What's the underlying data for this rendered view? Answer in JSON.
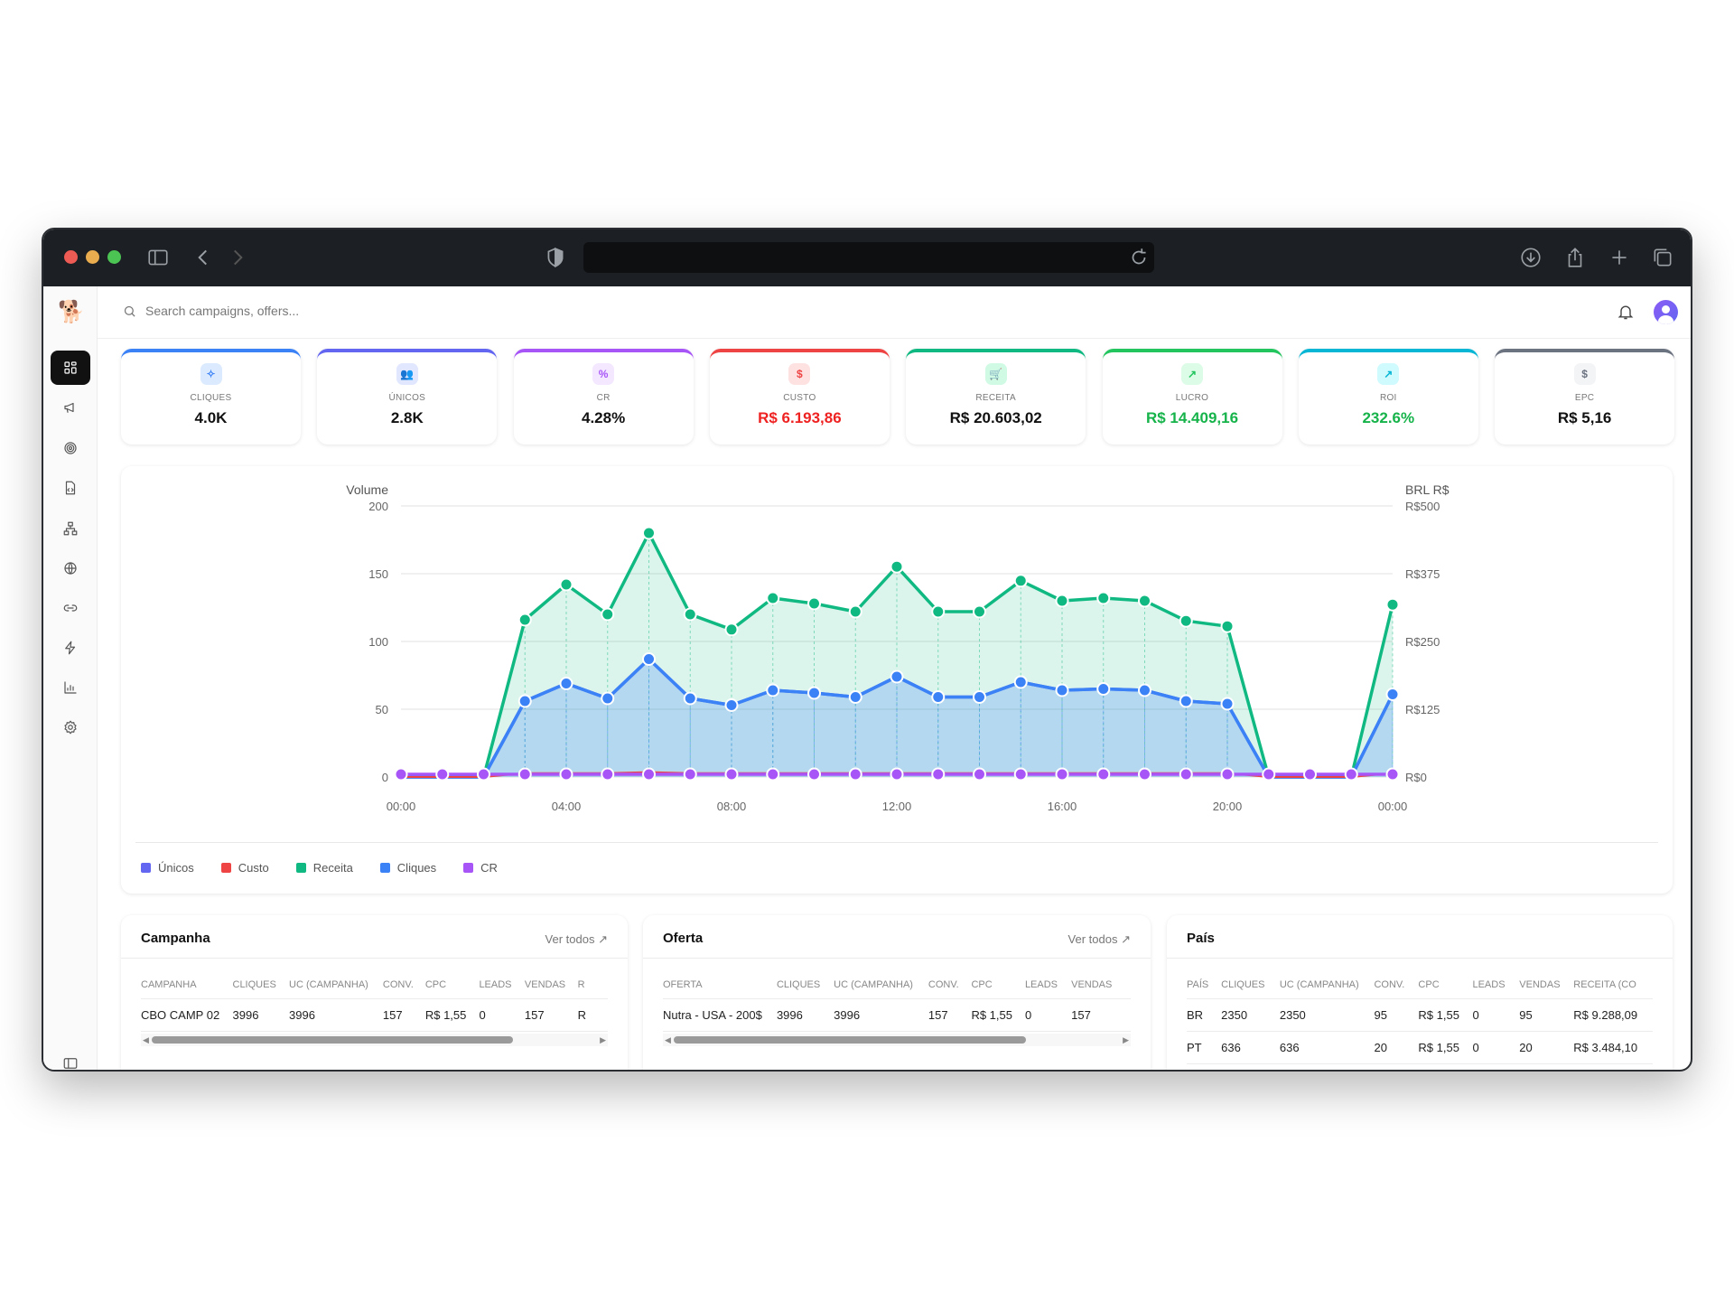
{
  "browser": {
    "icons": [
      "sidebar-toggle-icon",
      "back-icon",
      "forward-icon",
      "shield-icon",
      "reload-icon",
      "download-icon",
      "share-icon",
      "new-tab-icon",
      "tabs-overview-icon"
    ]
  },
  "header": {
    "search_placeholder": "Search campaigns, offers..."
  },
  "sidebar": {
    "items": [
      {
        "icon": "dashboard-icon",
        "active": true
      },
      {
        "icon": "megaphone-icon"
      },
      {
        "icon": "target-icon"
      },
      {
        "icon": "file-code-icon"
      },
      {
        "icon": "network-icon"
      },
      {
        "icon": "globe-icon"
      },
      {
        "icon": "link-icon"
      },
      {
        "icon": "zap-icon"
      },
      {
        "icon": "bar-chart-icon"
      },
      {
        "icon": "settings-icon"
      }
    ]
  },
  "kpis": [
    {
      "label": "CLIQUES",
      "value": "4.0K",
      "color": "#3b82f6",
      "icon": "✧",
      "icon_bg": "#dbeafe",
      "value_color": "#111111"
    },
    {
      "label": "ÚNICOS",
      "value": "2.8K",
      "color": "#6366f1",
      "icon": "👥",
      "icon_bg": "#e0e7ff",
      "value_color": "#111111"
    },
    {
      "label": "CR",
      "value": "4.28%",
      "color": "#a855f7",
      "icon": "%",
      "icon_bg": "#f3e8ff",
      "value_color": "#111111"
    },
    {
      "label": "CUSTO",
      "value": "R$ 6.193,86",
      "color": "#ef4444",
      "icon": "$",
      "icon_bg": "#fee2e2",
      "value_color": "#ef2222"
    },
    {
      "label": "RECEITA",
      "value": "R$ 20.603,02",
      "color": "#10b981",
      "icon": "🛒",
      "icon_bg": "#d1fae5",
      "value_color": "#111111"
    },
    {
      "label": "LUCRO",
      "value": "R$ 14.409,16",
      "color": "#22c55e",
      "icon": "↗",
      "icon_bg": "#dcfce7",
      "value_color": "#16b34a"
    },
    {
      "label": "ROI",
      "value": "232.6%",
      "color": "#06b6d4",
      "icon": "↗",
      "icon_bg": "#cffafe",
      "value_color": "#16b34a"
    },
    {
      "label": "EPC",
      "value": "R$ 5,16",
      "color": "#6b7280",
      "icon": "$",
      "icon_bg": "#f3f4f6",
      "value_color": "#111111"
    }
  ],
  "chart_data": {
    "type": "line",
    "x": [
      "00:00",
      "01:00",
      "02:00",
      "03:00",
      "04:00",
      "05:00",
      "06:00",
      "07:00",
      "08:00",
      "09:00",
      "10:00",
      "11:00",
      "12:00",
      "13:00",
      "14:00",
      "15:00",
      "16:00",
      "17:00",
      "18:00",
      "19:00",
      "20:00",
      "21:00",
      "22:00",
      "23:00",
      "00:00"
    ],
    "x_tick_labels": [
      "00:00",
      "04:00",
      "08:00",
      "12:00",
      "16:00",
      "20:00",
      "00:00"
    ],
    "ylabel": "Volume",
    "ylim": [
      0,
      200
    ],
    "yticks": [
      "0",
      "50",
      "100",
      "150",
      "200"
    ],
    "y2label": "BRL R$",
    "y2lim": [
      0,
      500
    ],
    "y2ticks": [
      "R$0",
      "R$125",
      "R$250",
      "R$375",
      "R$500"
    ],
    "grid": true,
    "legend_position": "bottom-left",
    "series": [
      {
        "name": "Únicos",
        "axis": "left",
        "color": "#6366f1",
        "values": [
          0,
          0,
          0,
          56,
          69,
          58,
          87,
          58,
          53,
          64,
          62,
          59,
          74,
          59,
          59,
          70,
          64,
          65,
          64,
          56,
          54,
          0,
          0,
          0,
          61
        ]
      },
      {
        "name": "Custo",
        "axis": "right",
        "color": "#ef4444",
        "values": [
          0,
          0,
          0,
          7,
          7,
          7,
          9,
          7,
          7,
          7,
          7,
          7,
          7,
          7,
          7,
          7,
          7,
          7,
          7,
          7,
          7,
          0,
          0,
          0,
          7
        ]
      },
      {
        "name": "Receita",
        "axis": "right",
        "color": "#10b981",
        "values": [
          0,
          0,
          0,
          290,
          355,
          300,
          450,
          300,
          272,
          330,
          320,
          305,
          388,
          305,
          305,
          362,
          325,
          330,
          325,
          288,
          278,
          0,
          0,
          0,
          318
        ]
      },
      {
        "name": "Cliques",
        "axis": "left",
        "color": "#3b82f6",
        "values": [
          0,
          0,
          0,
          56,
          69,
          58,
          87,
          58,
          53,
          64,
          62,
          59,
          74,
          59,
          59,
          70,
          64,
          65,
          64,
          56,
          54,
          0,
          0,
          0,
          61
        ]
      },
      {
        "name": "CR",
        "axis": "left",
        "color": "#a855f7",
        "values": [
          2,
          2,
          2,
          2,
          2,
          2,
          2,
          2,
          2,
          2,
          2,
          2,
          2,
          2,
          2,
          2,
          2,
          2,
          2,
          2,
          2,
          2,
          2,
          2,
          2
        ]
      }
    ]
  },
  "tables": [
    {
      "title": "Campanha",
      "more": "Ver todos",
      "columns": [
        "CAMPANHA",
        "CLIQUES",
        "UC (CAMPANHA)",
        "CONV.",
        "CPC",
        "LEADS",
        "VENDAS",
        "R"
      ],
      "rows": [
        [
          "CBO CAMP 02",
          "3996",
          "3996",
          "157",
          "R$ 1,55",
          "0",
          "157",
          "R"
        ]
      ]
    },
    {
      "title": "Oferta",
      "more": "Ver todos",
      "columns": [
        "OFERTA",
        "CLIQUES",
        "UC (CAMPANHA)",
        "CONV.",
        "CPC",
        "LEADS",
        "VENDAS"
      ],
      "rows": [
        [
          "Nutra - USA - 200$",
          "3996",
          "3996",
          "157",
          "R$ 1,55",
          "0",
          "157"
        ]
      ]
    },
    {
      "title": "País",
      "columns": [
        "PAÍS",
        "CLIQUES",
        "UC (CAMPANHA)",
        "CONV.",
        "CPC",
        "LEADS",
        "VENDAS",
        "RECEITA (CO"
      ],
      "rows": [
        [
          "BR",
          "2350",
          "2350",
          "95",
          "R$ 1,55",
          "0",
          "95",
          "R$ 9.288,09"
        ],
        [
          "PT",
          "636",
          "636",
          "20",
          "R$ 1,55",
          "0",
          "20",
          "R$ 3.484,10"
        ]
      ]
    }
  ]
}
